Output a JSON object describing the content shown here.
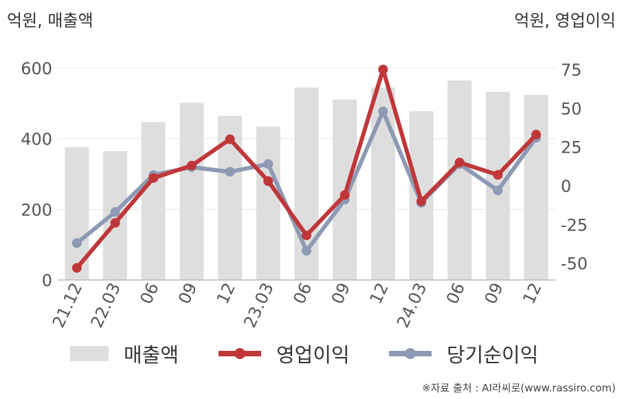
{
  "units": {
    "left": "억원, 매출액",
    "right": "억원, 영업이익"
  },
  "legend": {
    "revenue": "매출액",
    "operating_profit": "영업이익",
    "net_income": "당기순이익"
  },
  "source": "※자료 출처 : AI라씨로(www.rassiro.com)",
  "colors": {
    "revenue": "#dedede",
    "operating_profit": "#c0373a",
    "net_income": "#8e9ab4",
    "grid": "#e6e6e6",
    "axis": "#bbbbbb"
  },
  "chart_data": {
    "type": "bar",
    "categories": [
      "21.12",
      "22.03",
      "06",
      "09",
      "12",
      "23.03",
      "06",
      "09",
      "12",
      "24.03",
      "06",
      "09",
      "12"
    ],
    "series": [
      {
        "name": "매출액",
        "type": "bar",
        "axis": "left",
        "values": [
          376,
          365,
          447,
          502,
          465,
          434,
          545,
          511,
          545,
          478,
          565,
          533,
          524
        ]
      },
      {
        "name": "영업이익",
        "type": "line",
        "axis": "right",
        "values": [
          -53,
          -24,
          5,
          13,
          30,
          3,
          -32,
          -6,
          75,
          -10,
          15,
          7,
          33
        ]
      },
      {
        "name": "당기순이익",
        "type": "line",
        "axis": "right",
        "values": [
          -37,
          -17,
          7,
          12,
          9,
          14,
          -42,
          -9,
          48,
          -11,
          14,
          -3,
          31
        ]
      }
    ],
    "y_left": {
      "range": [
        0,
        600
      ],
      "ticks": [
        "0",
        "200",
        "400",
        "600"
      ]
    },
    "y_right": {
      "range": [
        -68,
        75
      ],
      "ticks": [
        "-50",
        "-25",
        "0",
        "25",
        "50",
        "75"
      ]
    },
    "grid": true,
    "legend_position": "bottom"
  }
}
